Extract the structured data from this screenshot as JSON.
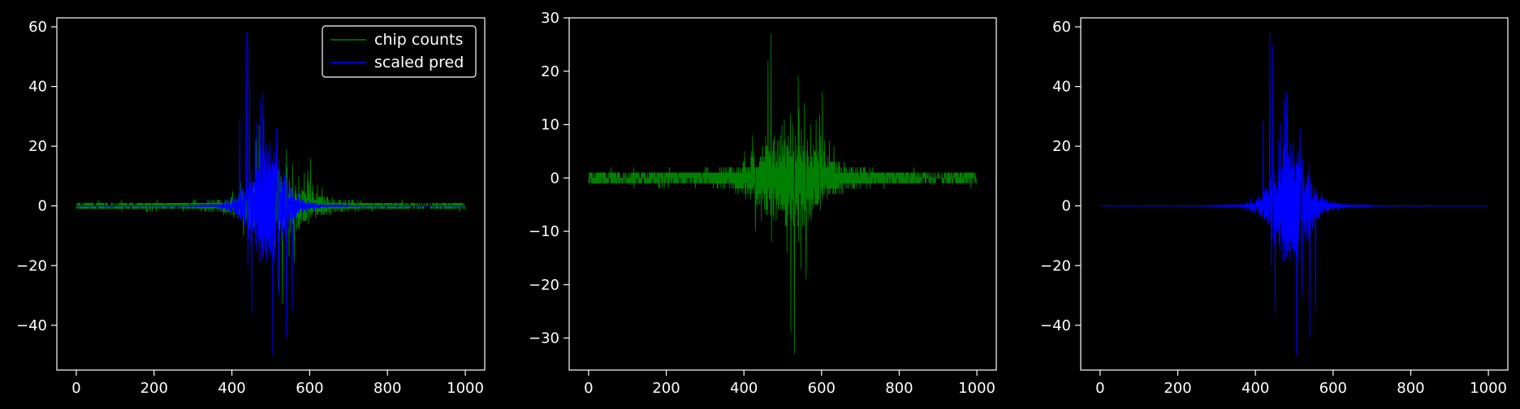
{
  "chart_data": [
    {
      "type": "line",
      "xlim": [
        -50,
        1050
      ],
      "ylim": [
        -55,
        63
      ],
      "xticks": [
        0,
        200,
        400,
        600,
        800,
        1000
      ],
      "yticks": [
        -40,
        -20,
        0,
        20,
        40,
        60
      ],
      "legend": {
        "placement": "upper-right",
        "entries": [
          "chip counts",
          "scaled pred"
        ]
      },
      "series": [
        {
          "name": "chip counts",
          "color": "#008000",
          "x_range": [
            0,
            999
          ],
          "envelope_peaks": [
            [
              470,
              27
            ],
            [
              530,
              -33
            ],
            [
              540,
              19
            ],
            [
              430,
              -10
            ],
            [
              560,
              -19
            ],
            [
              600,
              12
            ]
          ],
          "noise_level": [
            [
              0,
              1
            ],
            [
              300,
              2
            ],
            [
              450,
              8
            ],
            [
              600,
              5
            ],
            [
              700,
              2
            ],
            [
              1000,
              1
            ]
          ]
        },
        {
          "name": "scaled pred",
          "color": "#0000ff",
          "x_range": [
            0,
            999
          ],
          "envelope_peaks": [
            [
              437,
              58
            ],
            [
              445,
              54
            ],
            [
              480,
              38
            ],
            [
              505,
              -50
            ],
            [
              450,
              -36
            ],
            [
              540,
              -44
            ]
          ],
          "noise_level": [
            [
              0,
              0.1
            ],
            [
              300,
              0.5
            ],
            [
              420,
              15
            ],
            [
              560,
              12
            ],
            [
              650,
              1
            ],
            [
              1000,
              0.1
            ]
          ]
        }
      ]
    },
    {
      "type": "line",
      "xlim": [
        -50,
        1050
      ],
      "ylim": [
        -36,
        30
      ],
      "xticks": [
        0,
        200,
        400,
        600,
        800,
        1000
      ],
      "yticks": [
        -30,
        -20,
        -10,
        0,
        10,
        20,
        30
      ],
      "series": [
        {
          "color": "#008000",
          "x_range": [
            0,
            999
          ]
        }
      ]
    },
    {
      "type": "line",
      "xlim": [
        -50,
        1050
      ],
      "ylim": [
        -55,
        63
      ],
      "xticks": [
        0,
        200,
        400,
        600,
        800,
        1000
      ],
      "yticks": [
        -40,
        -20,
        0,
        20,
        40,
        60
      ],
      "series": [
        {
          "color": "#0000ff",
          "x_range": [
            0,
            999
          ]
        }
      ]
    }
  ]
}
